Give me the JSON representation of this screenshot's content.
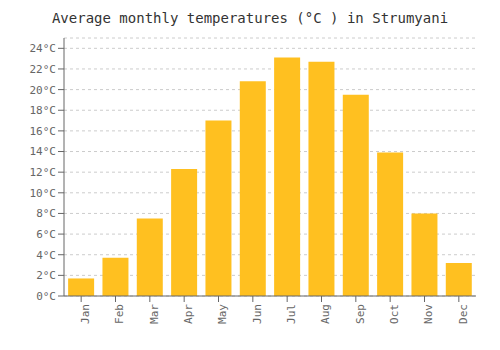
{
  "chart_data": {
    "type": "bar",
    "title": "Average monthly temperatures (°C ) in Strumyani",
    "categories": [
      "Jan",
      "Feb",
      "Mar",
      "Apr",
      "May",
      "Jun",
      "Jul",
      "Aug",
      "Sep",
      "Oct",
      "Nov",
      "Dec"
    ],
    "values": [
      1.7,
      3.7,
      7.5,
      12.3,
      17.0,
      20.8,
      23.1,
      22.7,
      19.5,
      13.9,
      8.0,
      3.2
    ],
    "color": "#FFC020",
    "ylim": [
      0,
      25
    ],
    "yticks": [
      {
        "value": 0,
        "label": "0°C"
      },
      {
        "value": 2,
        "label": "2°C"
      },
      {
        "value": 4,
        "label": "4°C"
      },
      {
        "value": 6,
        "label": "6°C"
      },
      {
        "value": 8,
        "label": "8°C"
      },
      {
        "value": 10,
        "label": "10°C"
      },
      {
        "value": 12,
        "label": "12°C"
      },
      {
        "value": 14,
        "label": "14°C"
      },
      {
        "value": 16,
        "label": "16°C"
      },
      {
        "value": 18,
        "label": "18°C"
      },
      {
        "value": 20,
        "label": "20°C"
      },
      {
        "value": 22,
        "label": "22°C"
      },
      {
        "value": 24,
        "label": "24°C"
      }
    ],
    "grid": true
  }
}
